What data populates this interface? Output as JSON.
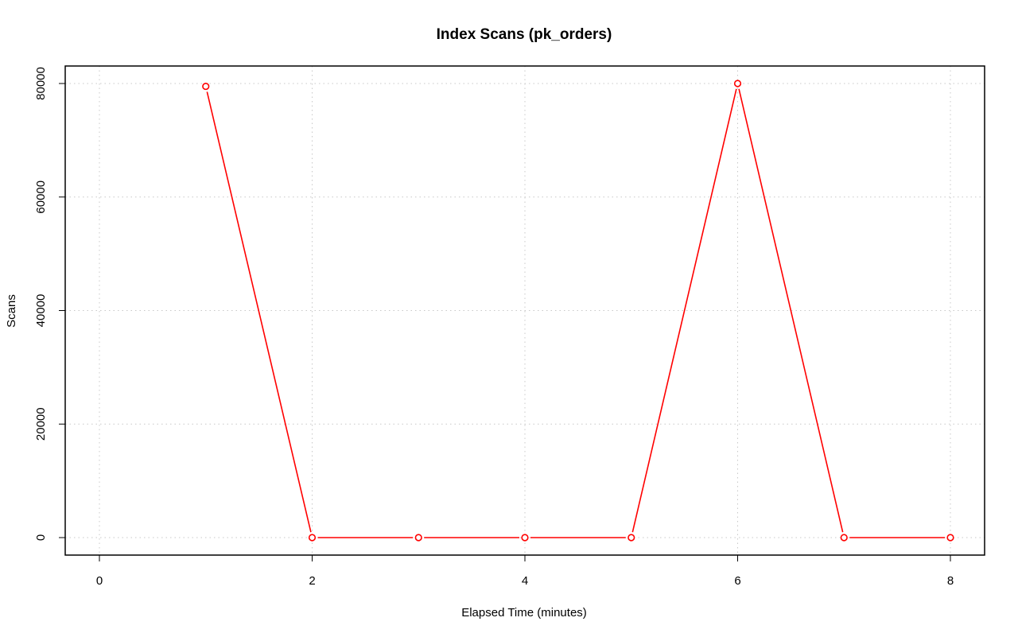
{
  "chart_data": {
    "type": "line",
    "title": "Index Scans (pk_orders)",
    "xlabel": "Elapsed Time (minutes)",
    "ylabel": "Scans",
    "xlim": [
      0,
      8
    ],
    "ylim": [
      0,
      80000
    ],
    "x_ticks": [
      0,
      2,
      4,
      6,
      8
    ],
    "y_ticks": [
      0,
      20000,
      40000,
      60000,
      80000
    ],
    "grid": true,
    "legend": "none",
    "color": "#ff0000",
    "series": [
      {
        "x": [
          1,
          2,
          3,
          4,
          5,
          6,
          7,
          8
        ],
        "values": [
          79500,
          0,
          0,
          0,
          0,
          80000,
          0,
          0
        ]
      }
    ]
  }
}
